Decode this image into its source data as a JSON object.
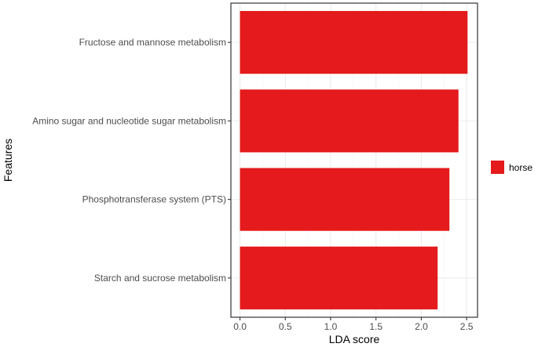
{
  "chart_data": {
    "type": "bar",
    "orientation": "horizontal",
    "categories": [
      "Fructose and mannose metabolism",
      "Amino sugar and nucleotide sugar metabolism",
      "Phosphotransferase system (PTS)",
      "Starch and sucrose metabolism"
    ],
    "series": [
      {
        "name": "horse",
        "values": [
          2.51,
          2.41,
          2.31,
          2.18
        ],
        "color": "#e41a1c"
      }
    ],
    "xlabel": "LDA score",
    "ylabel": "Features",
    "xlim": [
      -0.1,
      2.62
    ],
    "xticks": [
      "0.0",
      "0.5",
      "1.0",
      "1.5",
      "2.0",
      "2.5"
    ],
    "grid": true,
    "legend_position": "right",
    "theme": "bw"
  }
}
